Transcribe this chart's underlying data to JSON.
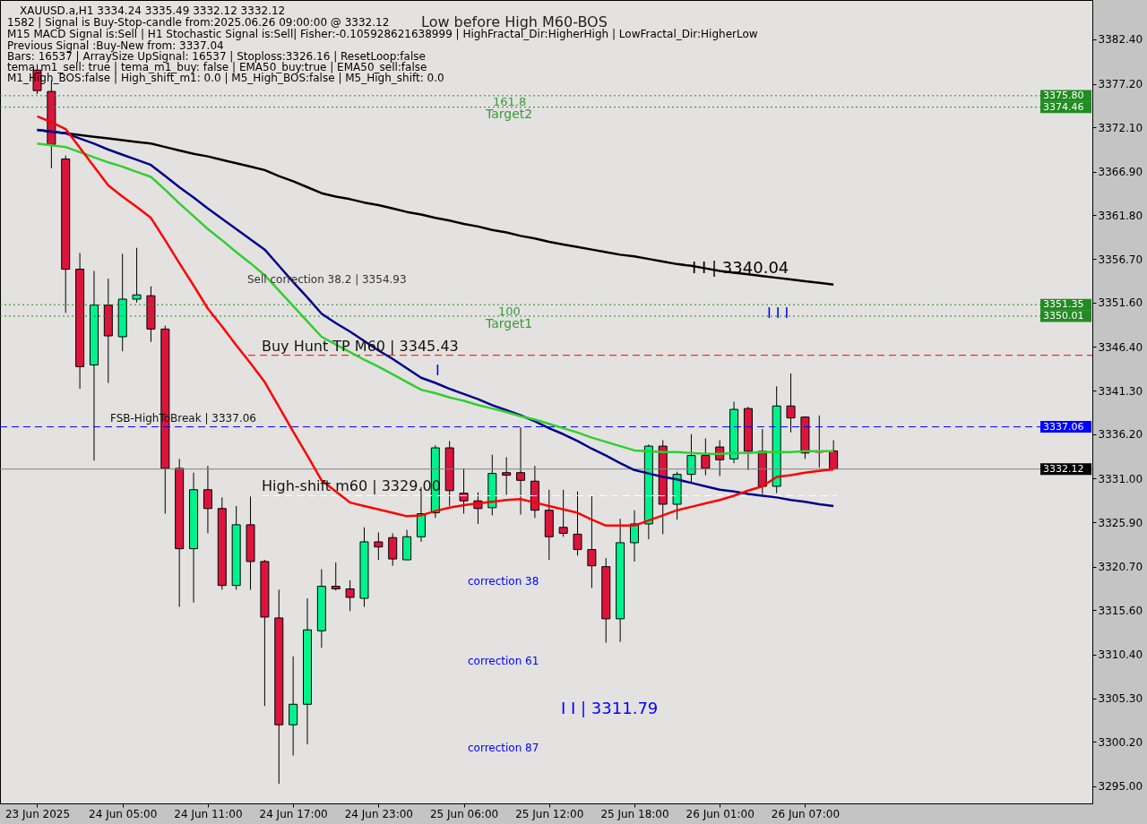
{
  "chart_data": {
    "type": "candlestick",
    "title": "XAUUSD.a,H1  3334.24 3335.49 3332.12 3332.12",
    "categories": [
      "23 Jun 2025",
      null,
      null,
      null,
      null,
      null,
      "24 Jun 05:00",
      null,
      null,
      null,
      null,
      null,
      "24 Jun 11:00",
      null,
      null,
      null,
      null,
      null,
      "24 Jun 17:00",
      null,
      null,
      null,
      null,
      null,
      "24 Jun 23:00",
      null,
      null,
      null,
      null,
      null,
      "25 Jun 06:00",
      null,
      null,
      null,
      null,
      null,
      "25 Jun 12:00",
      null,
      null,
      null,
      null,
      null,
      "25 Jun 18:00",
      null,
      null,
      null,
      null,
      null,
      "26 Jun 01:00",
      null,
      null,
      null,
      null,
      null,
      "26 Jun 07:00",
      null,
      null
    ],
    "ohlc": [
      [
        3378.8,
        3379.5,
        3376.0,
        3376.4
      ],
      [
        3376.3,
        3377.6,
        3367.3,
        3370.1
      ],
      [
        3368.4,
        3368.8,
        3350.4,
        3355.5
      ],
      [
        3355.5,
        3357.4,
        3341.5,
        3344.1
      ],
      [
        3344.3,
        3355.3,
        3333.1,
        3351.3
      ],
      [
        3351.3,
        3354.4,
        3342.2,
        3347.7
      ],
      [
        3347.6,
        3357.3,
        3345.9,
        3352.0
      ],
      [
        3352.0,
        3358.0,
        3351.6,
        3352.5
      ],
      [
        3352.4,
        3353.5,
        3347.0,
        3348.5
      ],
      [
        3348.5,
        3348.9,
        3326.9,
        3332.2
      ],
      [
        3332.2,
        3333.3,
        3316.0,
        3322.8
      ],
      [
        3322.8,
        3331.7,
        3316.5,
        3329.7
      ],
      [
        3329.7,
        3332.5,
        3324.6,
        3327.5
      ],
      [
        3327.5,
        3328.8,
        3318.0,
        3318.5
      ],
      [
        3318.5,
        3327.8,
        3318.0,
        3325.6
      ],
      [
        3325.6,
        3328.9,
        3318.0,
        3321.3
      ],
      [
        3321.3,
        3321.5,
        3304.4,
        3314.8
      ],
      [
        3314.7,
        3318.0,
        3295.3,
        3302.2
      ],
      [
        3302.2,
        3310.2,
        3298.6,
        3304.6
      ],
      [
        3304.6,
        3317.0,
        3299.9,
        3313.3
      ],
      [
        3313.2,
        3320.4,
        3311.2,
        3318.4
      ],
      [
        3318.4,
        3321.2,
        3317.9,
        3318.1
      ],
      [
        3318.1,
        3319.1,
        3315.5,
        3317.1
      ],
      [
        3317.0,
        3325.3,
        3316.0,
        3323.6
      ],
      [
        3323.6,
        3324.7,
        3321.5,
        3323.0
      ],
      [
        3324.1,
        3324.6,
        3320.8,
        3321.6
      ],
      [
        3321.5,
        3325.0,
        3321.5,
        3324.2
      ],
      [
        3324.2,
        3330.0,
        3323.6,
        3326.9
      ],
      [
        3327.0,
        3334.9,
        3326.4,
        3334.6
      ],
      [
        3334.6,
        3335.4,
        3327.8,
        3329.6
      ],
      [
        3329.3,
        3332.2,
        3326.9,
        3328.4
      ],
      [
        3328.4,
        3329.4,
        3325.7,
        3327.5
      ],
      [
        3327.6,
        3333.8,
        3326.7,
        3331.6
      ],
      [
        3331.7,
        3333.5,
        3329.1,
        3331.4
      ],
      [
        3331.7,
        3337.0,
        3326.8,
        3330.8
      ],
      [
        3330.7,
        3332.5,
        3326.4,
        3327.3
      ],
      [
        3327.3,
        3329.7,
        3321.5,
        3324.2
      ],
      [
        3325.3,
        3329.7,
        3324.2,
        3324.6
      ],
      [
        3324.5,
        3329.5,
        3322.0,
        3322.7
      ],
      [
        3322.7,
        3329.0,
        3318.2,
        3320.8
      ],
      [
        3320.7,
        3321.7,
        3311.8,
        3314.6
      ],
      [
        3314.6,
        3326.3,
        3311.9,
        3323.5
      ],
      [
        3323.5,
        3327.3,
        3321.3,
        3325.7
      ],
      [
        3325.7,
        3335.0,
        3323.9,
        3334.8
      ],
      [
        3334.8,
        3335.5,
        3324.5,
        3328.0
      ],
      [
        3328.0,
        3331.8,
        3326.2,
        3331.5
      ],
      [
        3331.5,
        3336.2,
        3330.4,
        3333.7
      ],
      [
        3333.7,
        3335.7,
        3331.4,
        3332.2
      ],
      [
        3334.7,
        3335.5,
        3331.3,
        3333.2
      ],
      [
        3333.3,
        3340.0,
        3332.8,
        3339.1
      ],
      [
        3339.2,
        3339.4,
        3332.0,
        3334.2
      ],
      [
        3334.2,
        3336.8,
        3329.2,
        3330.1
      ],
      [
        3330.1,
        3341.8,
        3329.3,
        3339.5
      ],
      [
        3339.5,
        3343.3,
        3336.4,
        3338.1
      ],
      [
        3338.2,
        3338.3,
        3333.3,
        3334.0
      ],
      [
        3334.1,
        3338.4,
        3332.3,
        3334.1
      ],
      [
        3334.24,
        3335.49,
        3332.12,
        3332.12
      ]
    ],
    "colors": [
      "#dc143c",
      "#dc143c",
      "#dc143c",
      "#dc143c",
      "#00f28c",
      "#dc143c",
      "#00f28c",
      "#00f28c",
      "#dc143c",
      "#dc143c",
      "#dc143c",
      "#00f28c",
      "#dc143c",
      "#dc143c",
      "#00f28c",
      "#dc143c",
      "#dc143c",
      "#dc143c",
      "#00f28c",
      "#00f28c",
      "#00f28c",
      "#dc143c",
      "#dc143c",
      "#00f28c",
      "#dc143c",
      "#dc143c",
      "#00f28c",
      "#00f28c",
      "#00f28c",
      "#dc143c",
      "#dc143c",
      "#dc143c",
      "#00f28c",
      "#dc143c",
      "#dc143c",
      "#dc143c",
      "#dc143c",
      "#dc143c",
      "#dc143c",
      "#dc143c",
      "#dc143c",
      "#00f28c",
      "#00f28c",
      "#00f28c",
      "#dc143c",
      "#00f28c",
      "#00f28c",
      "#dc143c",
      "#dc143c",
      "#00f28c",
      "#dc143c",
      "#dc143c",
      "#00f28c",
      "#dc143c",
      "#dc143c",
      "#dc143c",
      "#dc143c"
    ],
    "series": [
      {
        "type": "line",
        "color": "#000000",
        "values": [
          3371.8,
          3371.6,
          3371.4,
          3371.2,
          3371.0,
          3370.8,
          3370.6,
          3370.4,
          3370.2,
          3369.8,
          3369.4,
          3369.0,
          3368.7,
          3368.3,
          3367.9,
          3367.5,
          3367.1,
          3366.4,
          3365.8,
          3365.1,
          3364.4,
          3364.0,
          3363.7,
          3363.3,
          3363.0,
          3362.6,
          3362.2,
          3361.9,
          3361.5,
          3361.2,
          3360.8,
          3360.5,
          3360.1,
          3359.8,
          3359.4,
          3359.1,
          3358.7,
          3358.4,
          3358.1,
          3357.8,
          3357.5,
          3357.2,
          3357.0,
          3356.7,
          3356.4,
          3356.1,
          3355.9,
          3355.6,
          3355.3,
          3355.1,
          3354.9,
          3354.7,
          3354.5,
          3354.3,
          3354.1,
          3353.9,
          3353.7
        ]
      },
      {
        "type": "line",
        "color": "#00008b",
        "values": [
          3371.8,
          3371.6,
          3371.4,
          3370.8,
          3370.2,
          3369.5,
          3368.9,
          3368.3,
          3367.7,
          3366.4,
          3365.1,
          3363.9,
          3362.6,
          3361.4,
          3360.2,
          3359.0,
          3357.8,
          3355.9,
          3354.0,
          3352.2,
          3350.3,
          3349.2,
          3348.2,
          3347.1,
          3346.0,
          3345.0,
          3343.9,
          3342.8,
          3342.2,
          3341.5,
          3340.9,
          3340.3,
          3339.6,
          3339.0,
          3338.4,
          3337.7,
          3336.9,
          3336.2,
          3335.4,
          3334.5,
          3333.7,
          3332.8,
          3332.0,
          3331.6,
          3331.2,
          3330.9,
          3330.5,
          3330.1,
          3329.7,
          3329.5,
          3329.2,
          3329.0,
          3328.8,
          3328.5,
          3328.3,
          3328.0,
          3327.8
        ]
      },
      {
        "type": "line",
        "color": "#32cd32",
        "values": [
          3370.2,
          3370.0,
          3369.8,
          3369.2,
          3368.6,
          3368.0,
          3367.5,
          3366.9,
          3366.3,
          3364.8,
          3363.2,
          3361.7,
          3360.2,
          3358.9,
          3357.5,
          3356.2,
          3354.8,
          3353.0,
          3351.2,
          3349.4,
          3347.6,
          3346.7,
          3345.8,
          3344.9,
          3344.1,
          3343.2,
          3342.3,
          3341.4,
          3341.0,
          3340.5,
          3340.1,
          3339.6,
          3339.2,
          3338.8,
          3338.3,
          3337.9,
          3337.4,
          3336.9,
          3336.4,
          3335.8,
          3335.3,
          3334.8,
          3334.3,
          3334.2,
          3334.1,
          3334.1,
          3334.0,
          3333.9,
          3333.9,
          3334.0,
          3334.0,
          3334.1,
          3334.1,
          3334.1,
          3334.2,
          3334.2,
          3334.2
        ]
      },
      {
        "type": "line",
        "color": "#ff0000",
        "values": [
          3373.4,
          3372.7,
          3371.9,
          3369.7,
          3367.5,
          3365.3,
          3364.0,
          3362.8,
          3361.5,
          3358.9,
          3356.2,
          3353.6,
          3350.9,
          3348.8,
          3346.6,
          3344.5,
          3342.3,
          3339.4,
          3336.5,
          3333.7,
          3330.8,
          3329.5,
          3328.2,
          3327.8,
          3327.4,
          3327.0,
          3326.6,
          3326.7,
          3327.2,
          3327.6,
          3327.9,
          3328.1,
          3328.3,
          3328.5,
          3328.6,
          3328.2,
          3327.8,
          3327.4,
          3327.0,
          3326.2,
          3325.5,
          3325.5,
          3325.5,
          3326.1,
          3326.7,
          3327.3,
          3327.7,
          3328.1,
          3328.5,
          3329.0,
          3329.6,
          3330.1,
          3331.2,
          3331.4,
          3331.7,
          3331.9,
          3332.1
        ]
      }
    ],
    "ylim": [
      3293,
      3387
    ],
    "yticks": [
      {
        "value": 3295,
        "label": "3295.00"
      },
      {
        "value": 3300.2,
        "label": "3300.20"
      },
      {
        "value": 3305.3,
        "label": "3305.30"
      },
      {
        "value": 3310.4,
        "label": "3310.40"
      },
      {
        "value": 3315.6,
        "label": "3315.60"
      },
      {
        "value": 3320.7,
        "label": "3320.70"
      },
      {
        "value": 3325.9,
        "label": "3325.90"
      },
      {
        "value": 3331,
        "label": "3331.00"
      },
      {
        "value": 3336.2,
        "label": "3336.20"
      },
      {
        "value": 3341.3,
        "label": "3341.30"
      },
      {
        "value": 3346.4,
        "label": "3346.40"
      },
      {
        "value": 3351.6,
        "label": "3351.60"
      },
      {
        "value": 3356.7,
        "label": "3356.70"
      },
      {
        "value": 3361.8,
        "label": "3361.80"
      },
      {
        "value": 3366.9,
        "label": "3366.90"
      },
      {
        "value": 3372.1,
        "label": "3372.10"
      },
      {
        "value": 3377.2,
        "label": "3377.20"
      },
      {
        "value": 3382.4,
        "label": "3382.40"
      }
    ],
    "ref_lines": [
      {
        "axis": "y",
        "value": 3375.8,
        "label": "3375.80",
        "color": "#228b22",
        "line_style": "dotted"
      },
      {
        "axis": "y",
        "value": 3374.46,
        "label": "3374.46",
        "color": "#228b22",
        "line_style": "dotted"
      },
      {
        "axis": "y",
        "value": 3351.35,
        "label": "3351.35",
        "color": "#228b22",
        "line_style": "dotted"
      },
      {
        "axis": "y",
        "value": 3350.01,
        "label": "3350.01",
        "color": "#228b22",
        "line_style": "dotted"
      },
      {
        "axis": "y",
        "value": 3345.43,
        "label": "Buy Hunt TP M60 | 3345.43",
        "color": "#ff0000",
        "line_style": "dashed"
      },
      {
        "axis": "y",
        "value": 3337.06,
        "label": "3337.06",
        "color": "#0000ff",
        "line_style": "dashed"
      },
      {
        "axis": "y",
        "value": 3332.12,
        "label": "3332.12",
        "color": "#808080",
        "line_style": "solid"
      },
      {
        "axis": "y",
        "value": 3329.0,
        "label": "High-shift m60 | 3329.00",
        "color": "#ffffff",
        "line_style": "dashed"
      }
    ],
    "annotations": [
      "1582 | Signal is Buy-Stop-candle from:2025.06.26 09:00:00 @ 3332.12",
      "M15 MACD Signal is:Sell | H1 Stochastic Signal is:Sell| Fisher:-0.105928621638999 | HighFractal_Dir:HigherHigh | LowFractal_Dir:HigherLow",
      "Previous Signal :Buy-New from: 3337.04",
      "Bars: 16537 | ArraySize UpSignal: 16537 | Stoploss:3326.16 | ResetLoop:false",
      "tema_m1_sell: true | tema_m1_buy: false | EMA50_buy:true | EMA50_sell:false",
      "M1_High_BOS:false | High_shift_m1: 0.0 | M5_High_BOS:false | M5_High_shift: 0.0",
      "Low before High  M60-BOS",
      "Sell correction 38.2 | 3354.93",
      "I",
      "I I | 3340.04",
      "I I I",
      "correction 38",
      "correction 61",
      "correction 87",
      "I I | 3311.79",
      "161.8",
      "Target2",
      "100",
      "Target1",
      "FSB-HighToBreak | 3337.06"
    ]
  }
}
